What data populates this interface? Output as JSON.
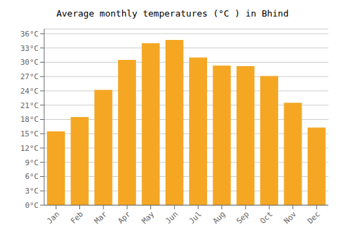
{
  "chart_data": {
    "type": "bar",
    "title": "Average monthly temperatures (°C ) in Bhind",
    "categories": [
      "Jan",
      "Feb",
      "Mar",
      "Apr",
      "May",
      "Jun",
      "Jul",
      "Aug",
      "Sep",
      "Oct",
      "Nov",
      "Dec"
    ],
    "values": [
      15.5,
      18.5,
      24.2,
      30.5,
      34.0,
      34.7,
      31.0,
      29.3,
      29.2,
      27.1,
      21.5,
      16.3
    ],
    "color": "#F5A623",
    "ylim": [
      0,
      37
    ],
    "yticks": [
      {
        "value": 0,
        "label": "0°C"
      },
      {
        "value": 3,
        "label": "3°C"
      },
      {
        "value": 6,
        "label": "6°C"
      },
      {
        "value": 9,
        "label": "9°C"
      },
      {
        "value": 12,
        "label": "12°C"
      },
      {
        "value": 15,
        "label": "15°C"
      },
      {
        "value": 18,
        "label": "18°C"
      },
      {
        "value": 21,
        "label": "21°C"
      },
      {
        "value": 24,
        "label": "24°C"
      },
      {
        "value": 27,
        "label": "27°C"
      },
      {
        "value": 30,
        "label": "30°C"
      },
      {
        "value": 33,
        "label": "33°C"
      },
      {
        "value": 36,
        "label": "36°C"
      }
    ],
    "grid": true
  }
}
